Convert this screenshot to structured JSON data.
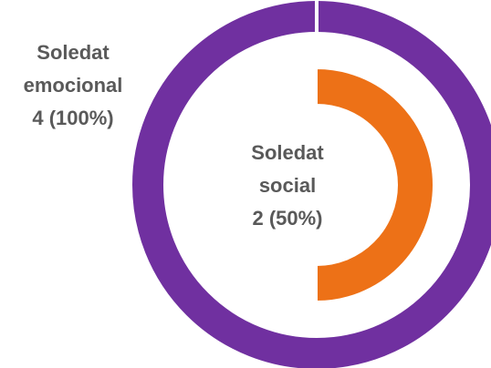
{
  "chart_data": {
    "type": "donut",
    "series": [
      {
        "name": "Soledat emocional",
        "color": "#7030a0",
        "values": [
          4
        ],
        "percent": 100,
        "value_labels": [
          "4 (100%)"
        ]
      },
      {
        "name": "Soledat social",
        "color": "#ed7117",
        "values": [
          2
        ],
        "percent": 50,
        "value_labels": [
          "2 (50%)"
        ]
      }
    ]
  }
}
